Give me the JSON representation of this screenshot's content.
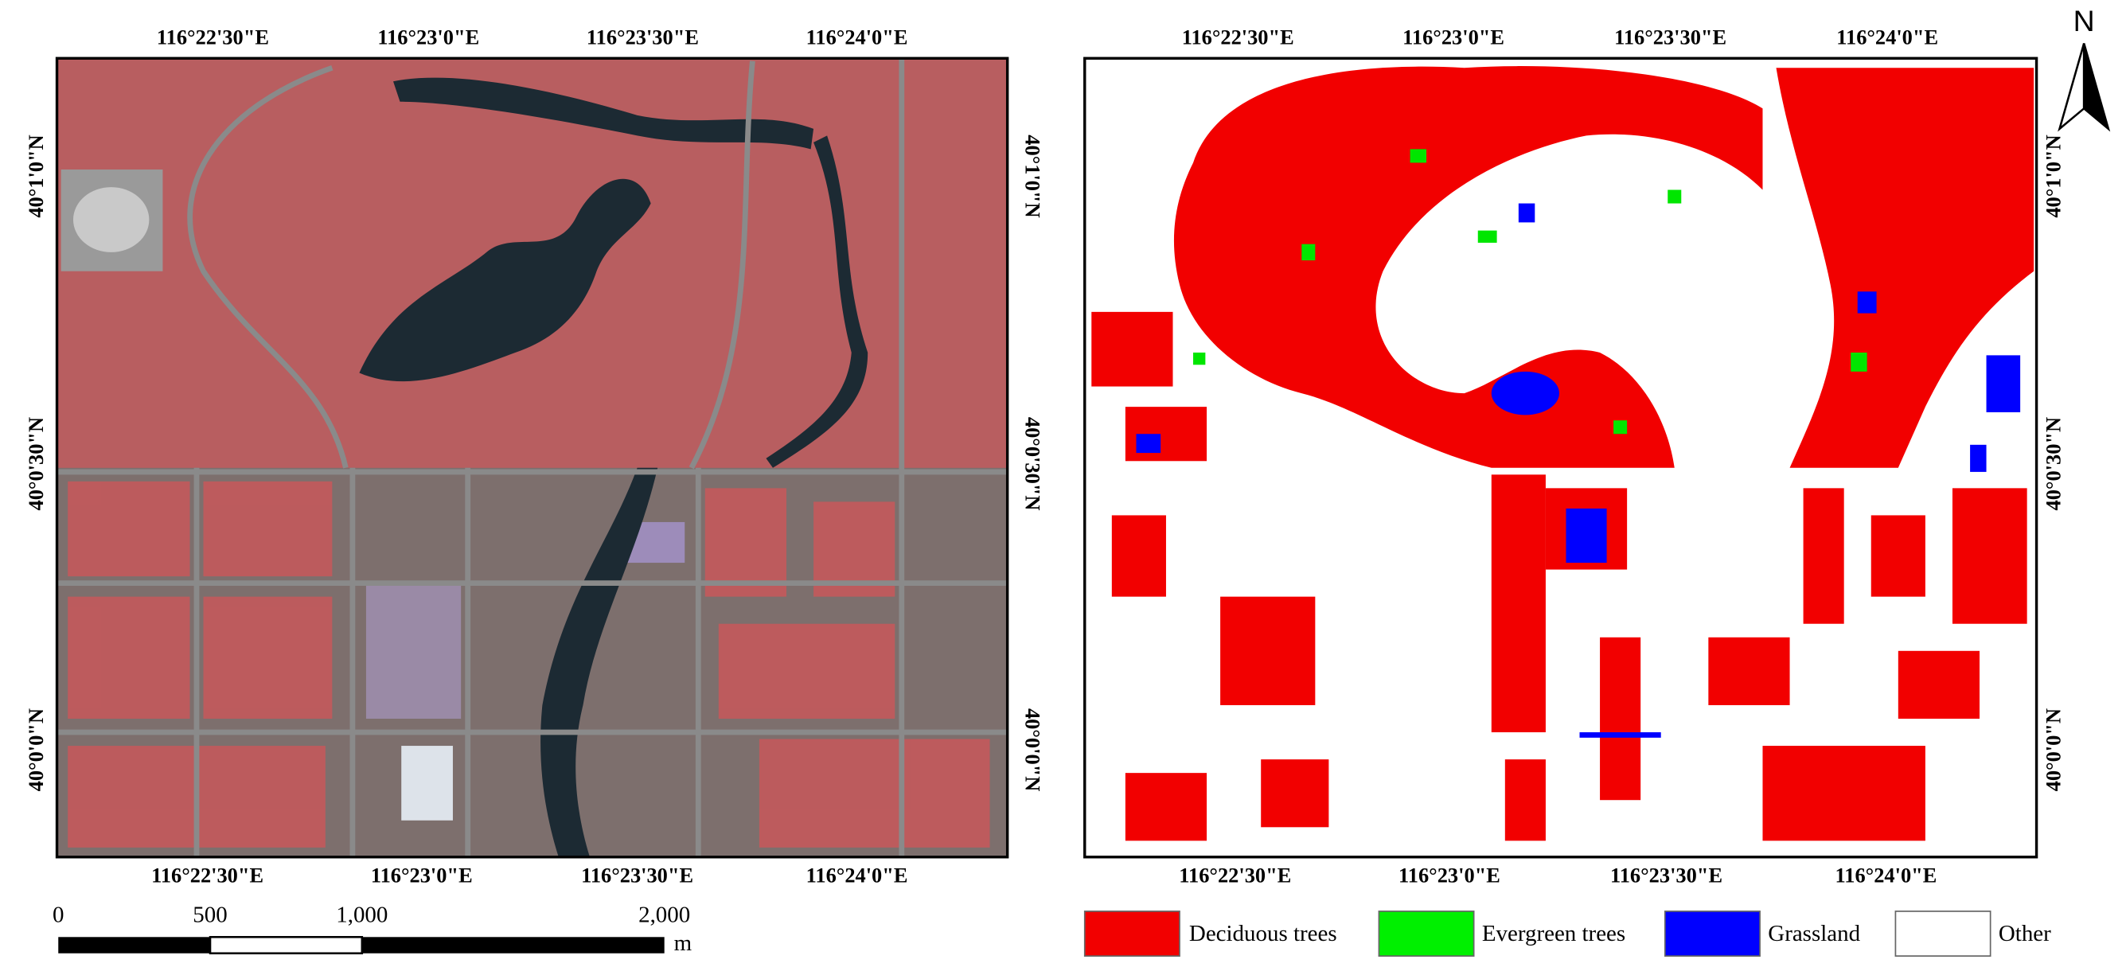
{
  "left_map": {
    "top_labels": [
      "116°22'30\"E",
      "116°23'0\"E",
      "116°23'30\"E",
      "116°24'0\"E"
    ],
    "bottom_labels": [
      "116°22'30\"E",
      "116°23'0\"E",
      "116°23'30\"E",
      "116°24'0\"E"
    ],
    "left_labels": [
      "40°1'0\"N",
      "40°0'30\"N",
      "40°0'0\"N"
    ]
  },
  "right_map": {
    "top_labels": [
      "116°22'30\"E",
      "116°23'0\"E",
      "116°23'30\"E",
      "116°24'0\"E"
    ],
    "bottom_labels": [
      "116°22'30\"E",
      "116°23'0\"E",
      "116°23'30\"E",
      "116°24'0\"E"
    ],
    "left_labels": [
      "40°1'0\"N",
      "40°0'30\"N",
      "40°0'0\"N"
    ],
    "right_labels": [
      "40°1'0\"N",
      "40°0'30\"N",
      "40°0'0\"N"
    ]
  },
  "scale_bar": {
    "labels": [
      "0",
      "500",
      "1,000",
      "2,000"
    ],
    "unit": "m"
  },
  "legend": [
    "Deciduous trees",
    "Evergreen trees",
    "Grassland",
    "Other"
  ],
  "north": "N"
}
